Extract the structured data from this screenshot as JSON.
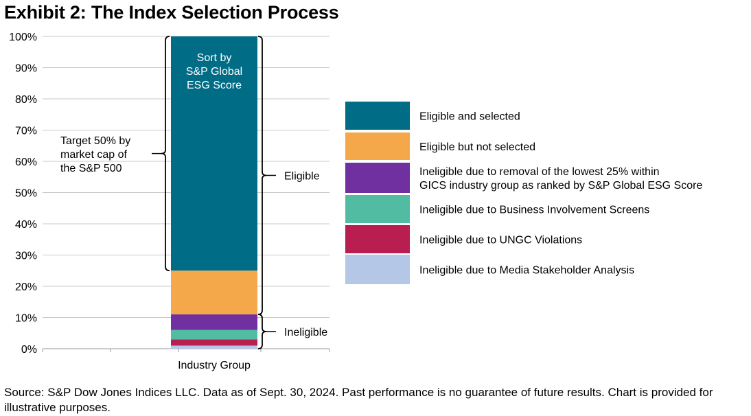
{
  "title": "Exhibit 2: The Index Selection Process",
  "footer": "Source: S&P Dow Jones Indices LLC. Data as of Sept. 30, 2024. Past performance is no guarantee of future results. Chart is provided for illustrative purposes.",
  "chart_data": {
    "type": "bar",
    "stacked": true,
    "categories": [
      "Industry Group"
    ],
    "ylim": [
      0,
      100
    ],
    "yticks": [
      "0%",
      "10%",
      "20%",
      "30%",
      "40%",
      "50%",
      "60%",
      "70%",
      "80%",
      "90%",
      "100%"
    ],
    "grid": true,
    "legend_position": "right",
    "series": [
      {
        "name": "Ineligible due to Media Stakeholder Analysis",
        "values": [
          1
        ],
        "color": "#b4c7e7"
      },
      {
        "name": "Ineligible due to UNGC Violations",
        "values": [
          2
        ],
        "color": "#b81f50"
      },
      {
        "name": "Ineligible due to Business Involvement Screens",
        "values": [
          3
        ],
        "color": "#52bca3"
      },
      {
        "name": "Ineligible due to removal of the lowest 25% within GICS industry group as ranked by S&P Global ESG Score",
        "values": [
          5
        ],
        "color": "#7030a0"
      },
      {
        "name": "Eligible but not selected",
        "values": [
          14
        ],
        "color": "#f4a84a"
      },
      {
        "name": "Eligible and selected",
        "values": [
          75
        ],
        "color": "#006c85"
      }
    ],
    "legend_order": [
      5,
      4,
      3,
      2,
      1,
      0
    ],
    "legend_lines": [
      [
        "Eligible and selected"
      ],
      [
        "Eligible but not selected"
      ],
      [
        "Ineligible due to removal of the lowest 25% within",
        "GICS industry group as ranked by S&P Global ESG Score"
      ],
      [
        "Ineligible due to Business Involvement Screens"
      ],
      [
        "Ineligible due to UNGC Violations"
      ],
      [
        "Ineligible due to Media Stakeholder Analysis"
      ]
    ],
    "annotations": {
      "bar_label": [
        "Sort by",
        "S&P Global",
        "ESG Score"
      ],
      "target": [
        "Target 50% by",
        "market cap of",
        "the S&P 500"
      ],
      "eligible": "Eligible",
      "ineligible": "Ineligible"
    }
  }
}
